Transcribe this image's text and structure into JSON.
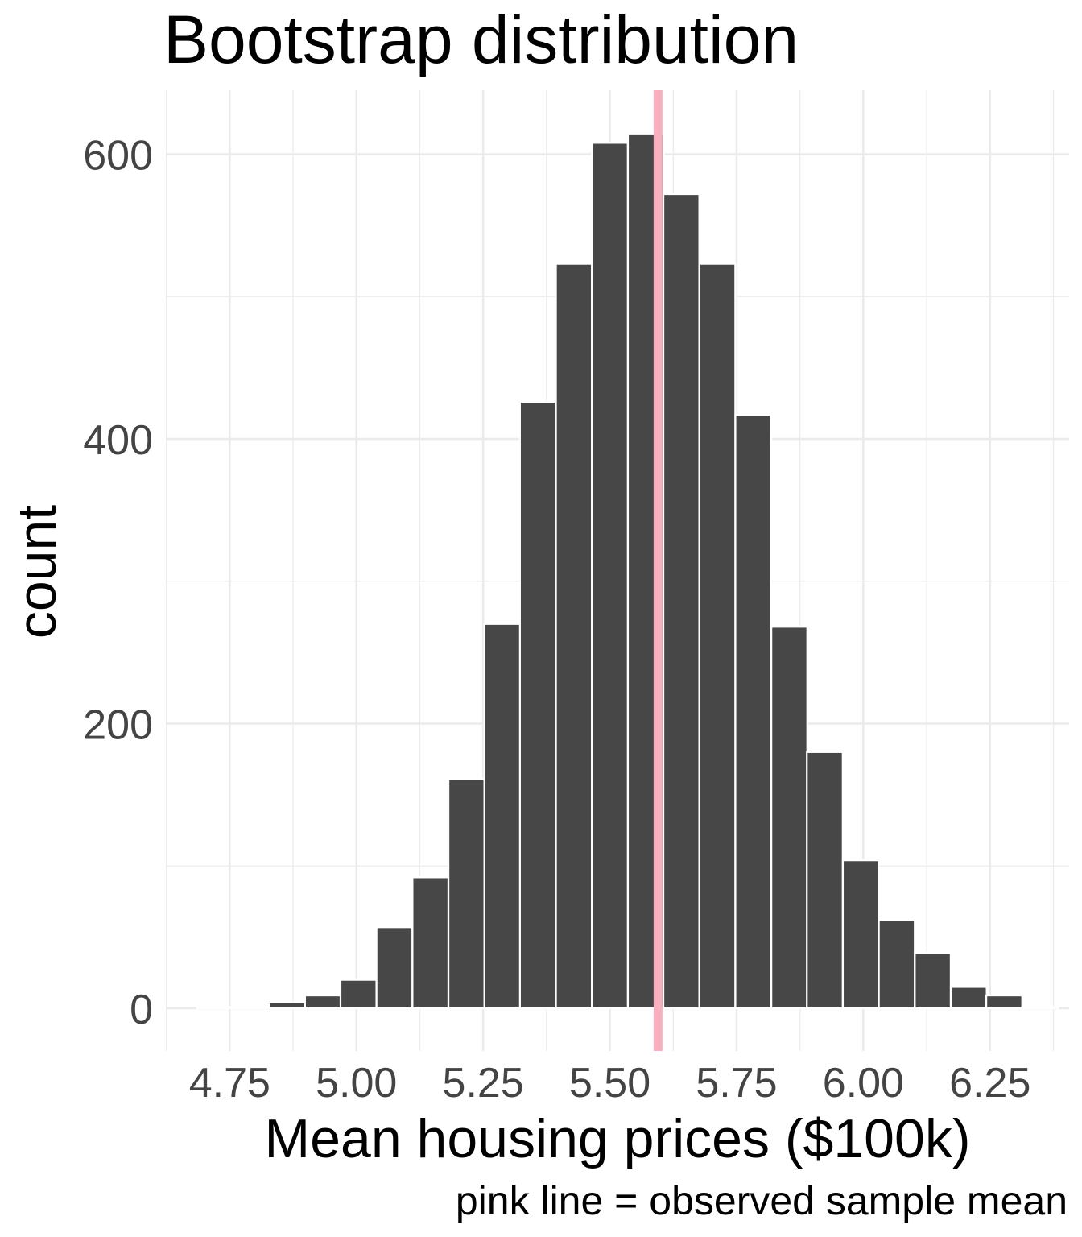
{
  "chart_data": {
    "type": "bar",
    "title": "Bootstrap distribution",
    "xlabel": "Mean housing prices ($100k)",
    "ylabel": "count",
    "caption": "pink line = observed sample mean",
    "bin_width": 0.0708,
    "x": [
      4.721,
      4.792,
      4.863,
      4.934,
      5.004,
      5.075,
      5.146,
      5.217,
      5.288,
      5.358,
      5.429,
      5.5,
      5.571,
      5.641,
      5.712,
      5.783,
      5.854,
      5.924,
      5.995,
      6.066,
      6.137,
      6.208,
      6.278,
      6.349
    ],
    "values": [
      1,
      1,
      4,
      9,
      20,
      57,
      92,
      161,
      270,
      426,
      523,
      608,
      614,
      572,
      523,
      417,
      268,
      180,
      104,
      62,
      39,
      15,
      9,
      1
    ],
    "reference_line": {
      "x": 5.595,
      "color": "#F8AFBF"
    },
    "bar_color": "#474747",
    "bar_edge_color": "#FFFFFF",
    "xlim": [
      4.624,
      6.406
    ],
    "ylim": [
      -30,
      645
    ],
    "x_ticks": [
      4.75,
      5.0,
      5.25,
      5.5,
      5.75,
      6.0,
      6.25
    ],
    "x_tick_labels": [
      "4.75",
      "5.00",
      "5.25",
      "5.50",
      "5.75",
      "6.00",
      "6.25"
    ],
    "y_ticks": [
      0,
      200,
      400,
      600
    ],
    "y_tick_labels": [
      "0",
      "200",
      "400",
      "600"
    ],
    "grid": true
  }
}
